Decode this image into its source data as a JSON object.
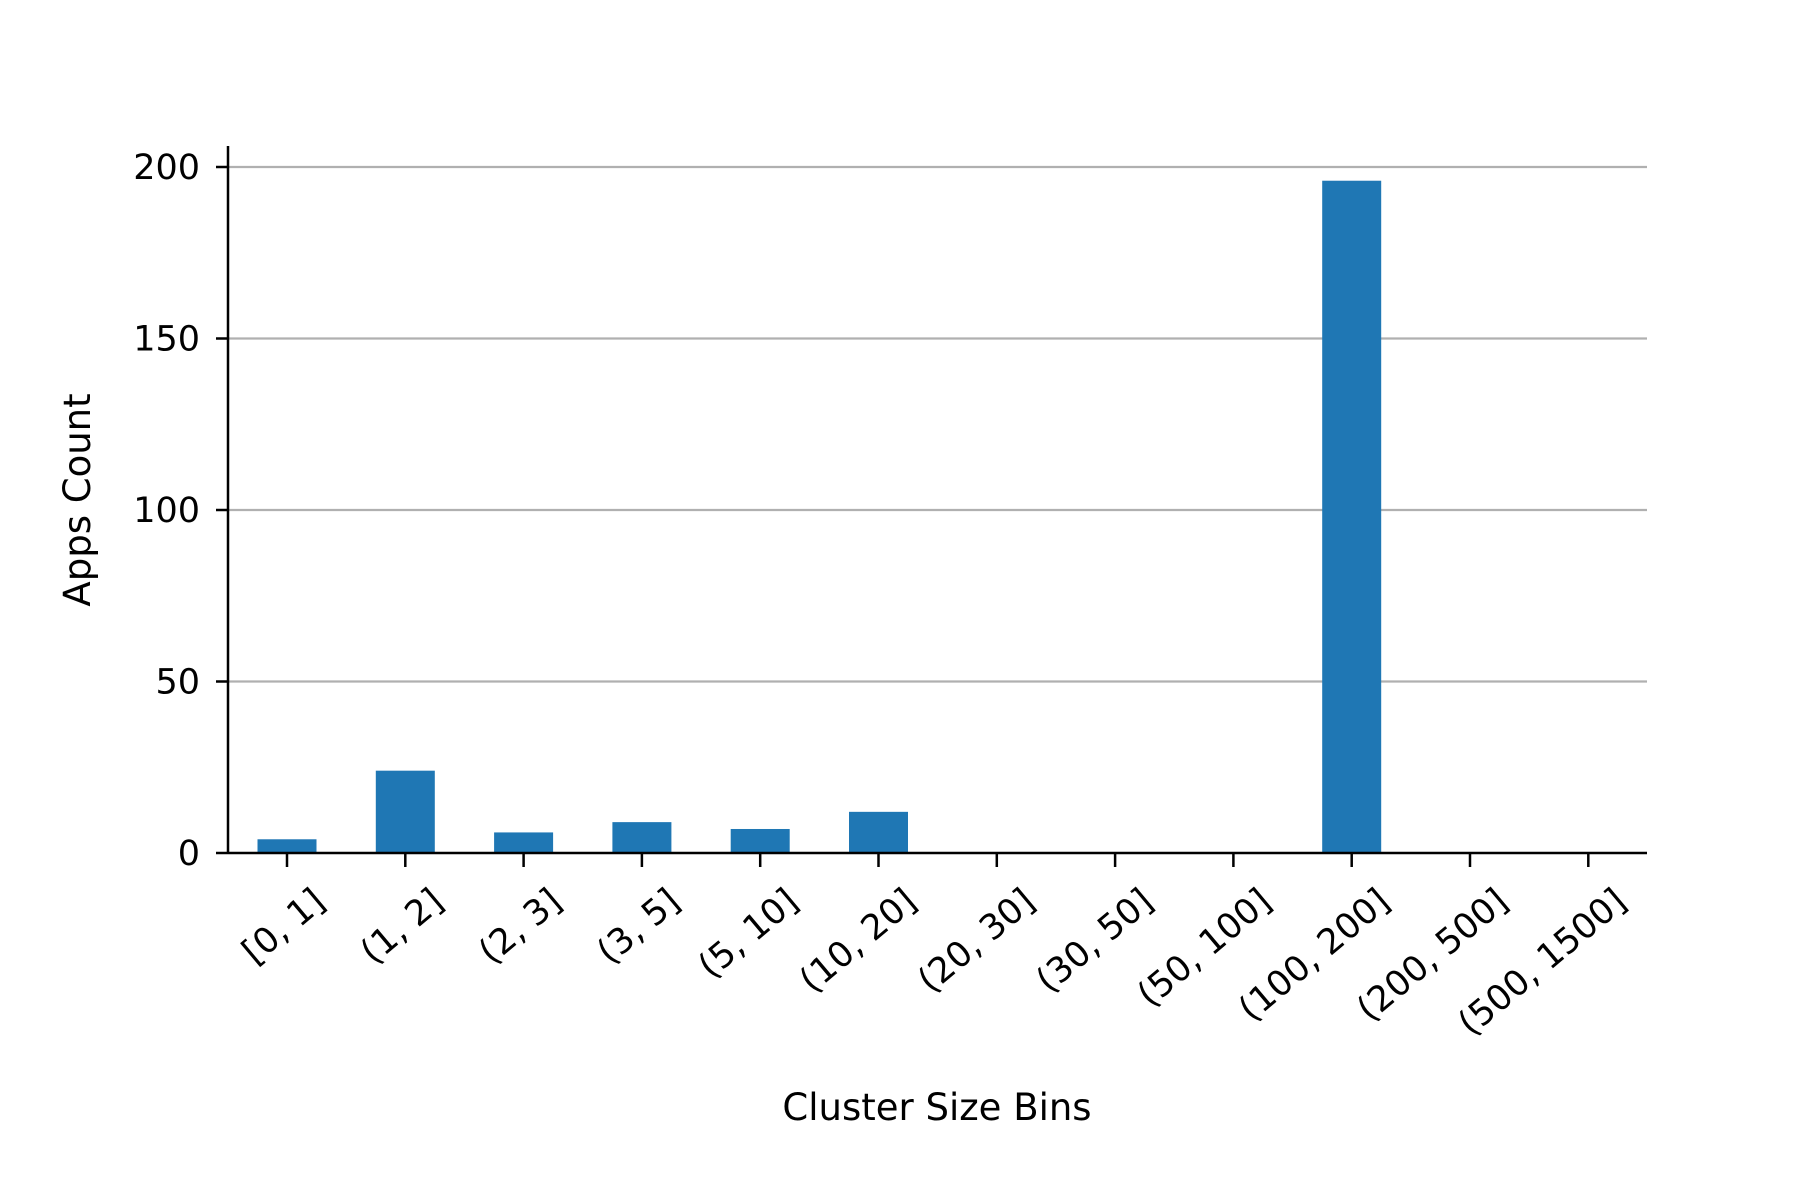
{
  "chart_data": {
    "type": "bar",
    "categories": [
      "[0, 1]",
      "(1, 2]",
      "(2, 3]",
      "(3, 5]",
      "(5, 10]",
      "(10, 20]",
      "(20, 30]",
      "(30, 50]",
      "(50, 100]",
      "(100, 200]",
      "(200, 500]",
      "(500, 1500]"
    ],
    "values": [
      4,
      24,
      6,
      9,
      7,
      12,
      0,
      0,
      0,
      196,
      0,
      0
    ],
    "title": "",
    "xlabel": "Cluster Size Bins",
    "ylabel": "Apps Count",
    "ylim": [
      0,
      206
    ],
    "yticks": [
      0,
      50,
      100,
      150,
      200
    ],
    "grid": "y-major",
    "legend": "none",
    "bar_color": "#1f77b4",
    "grid_color": "#b0b0b0"
  }
}
